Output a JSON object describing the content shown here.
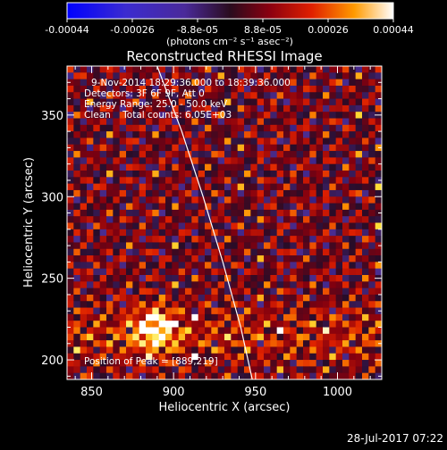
{
  "chart_data": {
    "type": "heatmap",
    "title": "Reconstructed RHESSI Image",
    "xlabel": "Heliocentric X (arcsec)",
    "ylabel": "Heliocentric Y (arcsec)",
    "xlim": [
      835,
      1027
    ],
    "ylim": [
      188,
      380
    ],
    "x_ticks": [
      850,
      900,
      950,
      1000
    ],
    "y_ticks": [
      200,
      250,
      300,
      350
    ],
    "colorbar": {
      "ticks": [
        "-0.00044",
        "-0.00026",
        "-8.8e-05",
        "8.8e-05",
        "0.00026",
        "0.00044"
      ],
      "unit_label": "(photons cm⁻² s⁻¹ asec⁻²)",
      "min": -0.00044,
      "max": 0.00044
    },
    "annotations": [
      "9-Nov-2014 18:29:36.000 to 18:39:36.000",
      "Detectors: 3F 6F 9F, Att 0",
      "Energy Range: 25.0 - 50.0 keV",
      "Clean    Total counts: 6.05E+03"
    ],
    "peak_label": "Position of Peak = [889,219]",
    "peak": [
      889,
      219
    ],
    "limb_curve": [
      [
        890,
        380
      ],
      [
        905,
        340
      ],
      [
        918,
        300
      ],
      [
        930,
        260
      ],
      [
        941,
        220
      ],
      [
        948,
        188
      ]
    ],
    "grid": false,
    "legend": "none"
  },
  "footer": {
    "timestamp": "28-Jul-2017 07:22"
  },
  "colors": {
    "background": "#000000",
    "axes": "#ffffff",
    "limb": "#ffffff"
  }
}
